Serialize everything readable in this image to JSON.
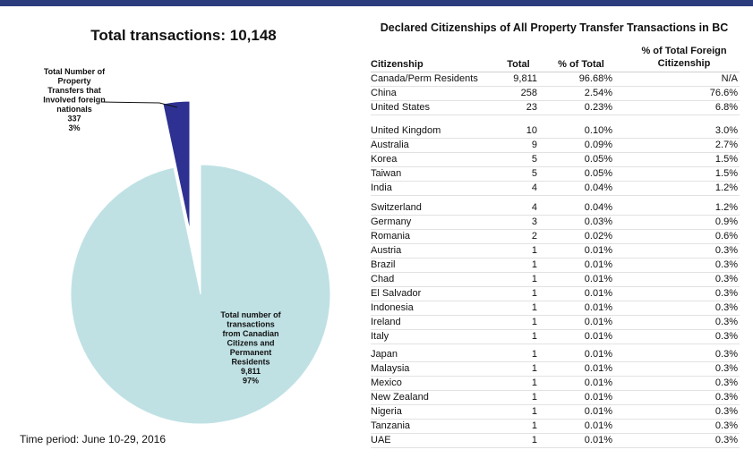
{
  "pie_title": "Total transactions: 10,148",
  "time_period": "Time period: June 10-29, 2016",
  "chart_data": {
    "type": "pie",
    "title": "Total transactions: 10,148",
    "slices": [
      {
        "name": "foreign",
        "label_lines": [
          "Total Number of",
          "Property",
          "Transfers that",
          "Involved foreign",
          "nationals"
        ],
        "value": 337,
        "value_label": "337",
        "pct_label": "3%",
        "color": "#2e3192"
      },
      {
        "name": "canadian",
        "label_lines": [
          "Total number of",
          "transactions",
          "from Canadian",
          "Citizens and",
          "Permanent",
          "Residents"
        ],
        "value": 9811,
        "value_label": "9,811",
        "pct_label": "97%",
        "color": "#bfe1e4"
      }
    ]
  },
  "table": {
    "title": "Declared Citizenships of All Property Transfer Transactions in BC",
    "headers": {
      "citizenship": "Citizenship",
      "total": "Total",
      "pct_total": "% of Total",
      "pct_foreign_lines": [
        "% of Total Foreign",
        "Citizenship"
      ]
    },
    "rows": [
      [
        "Canada/Perm Residents",
        "9,811",
        "96.68%",
        "N/A"
      ],
      [
        "China",
        "258",
        "2.54%",
        "76.6%"
      ],
      [
        "United States",
        "23",
        "0.23%",
        "6.8%"
      ],
      [
        "United Kingdom",
        "10",
        "0.10%",
        "3.0%"
      ],
      [
        "Australia",
        "9",
        "0.09%",
        "2.7%"
      ],
      [
        "Korea",
        "5",
        "0.05%",
        "1.5%"
      ],
      [
        "Taiwan",
        "5",
        "0.05%",
        "1.5%"
      ],
      [
        "India",
        "4",
        "0.04%",
        "1.2%"
      ],
      [
        "Switzerland",
        "4",
        "0.04%",
        "1.2%"
      ],
      [
        "Germany",
        "3",
        "0.03%",
        "0.9%"
      ],
      [
        "Romania",
        "2",
        "0.02%",
        "0.6%"
      ],
      [
        "Austria",
        "1",
        "0.01%",
        "0.3%"
      ],
      [
        "Brazil",
        "1",
        "0.01%",
        "0.3%"
      ],
      [
        "Chad",
        "1",
        "0.01%",
        "0.3%"
      ],
      [
        "El Salvador",
        "1",
        "0.01%",
        "0.3%"
      ],
      [
        "Indonesia",
        "1",
        "0.01%",
        "0.3%"
      ],
      [
        "Ireland",
        "1",
        "0.01%",
        "0.3%"
      ],
      [
        "Italy",
        "1",
        "0.01%",
        "0.3%"
      ],
      [
        "Japan",
        "1",
        "0.01%",
        "0.3%"
      ],
      [
        "Malaysia",
        "1",
        "0.01%",
        "0.3%"
      ],
      [
        "Mexico",
        "1",
        "0.01%",
        "0.3%"
      ],
      [
        "New Zealand",
        "1",
        "0.01%",
        "0.3%"
      ],
      [
        "Nigeria",
        "1",
        "0.01%",
        "0.3%"
      ],
      [
        "Tanzania",
        "1",
        "0.01%",
        "0.3%"
      ],
      [
        "UAE",
        "1",
        "0.01%",
        "0.3%"
      ]
    ]
  }
}
